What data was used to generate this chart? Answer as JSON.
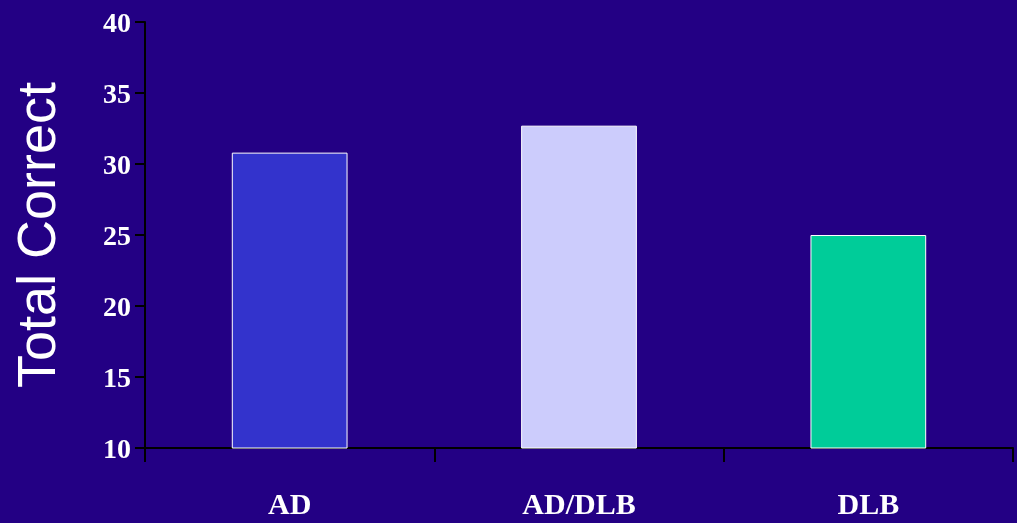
{
  "chart_data": {
    "type": "bar",
    "ylabel": "Total Correct",
    "categories": [
      "AD",
      "AD/DLB",
      "DLB"
    ],
    "values": [
      30.8,
      32.7,
      25
    ],
    "colors": [
      "#3333cc",
      "#ccccfc",
      "#00cc99"
    ],
    "ylim": [
      10,
      40
    ],
    "yticks": [
      10,
      15,
      20,
      25,
      30,
      35,
      40
    ]
  }
}
